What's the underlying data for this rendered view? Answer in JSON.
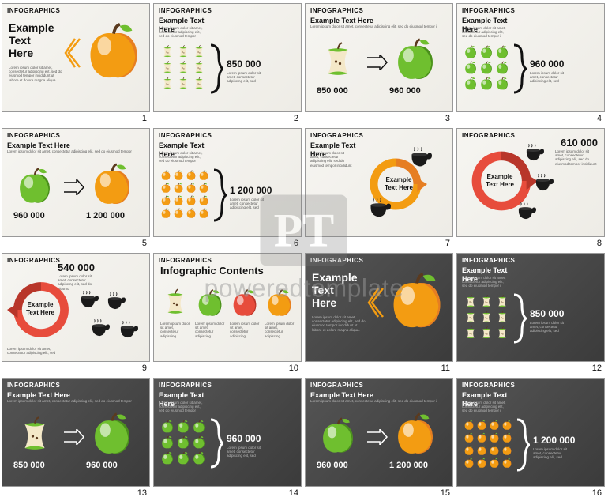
{
  "watermark": {
    "logo": "PT",
    "text": "poweredtemplate"
  },
  "common": {
    "tag": "INFOGRAPHICS",
    "title": "Example Text Here",
    "infographic_contents": "Infographic Contents",
    "lorem": "Lorem ipsum dolor sit amet, consectetur adipiscing elit, sed do eiusmod tempor incididunt ut labore et dolore magna aliqua."
  },
  "colors": {
    "orange": "#f39c12",
    "orange_dark": "#e67e22",
    "green": "#6fbf2f",
    "green_dark": "#4a8f1c",
    "red": "#e74c3c",
    "red_dark": "#b8362a",
    "black": "#1a1a1a",
    "core": "#f4e8c8",
    "core_seed": "#5b3a1e"
  },
  "slides": [
    {
      "n": 1,
      "bg": "light",
      "layout": "hero",
      "icon": "apple_orange"
    },
    {
      "n": 2,
      "bg": "light",
      "layout": "grid_brace",
      "icon": "core_green",
      "rows": 3,
      "cols": 3,
      "value": "850 000"
    },
    {
      "n": 3,
      "bg": "light",
      "layout": "compare",
      "left": "core_green",
      "right": "apple_green",
      "vals": [
        "850 000",
        "960 000"
      ]
    },
    {
      "n": 4,
      "bg": "light",
      "layout": "grid_brace",
      "icon": "apple_green",
      "rows": 3,
      "cols": 3,
      "value": "960 000"
    },
    {
      "n": 5,
      "bg": "light",
      "layout": "compare",
      "left": "apple_green",
      "right": "apple_orange",
      "vals": [
        "960 000",
        "1 200 000"
      ]
    },
    {
      "n": 6,
      "bg": "light",
      "layout": "grid_brace",
      "icon": "apple_orange",
      "rows": 4,
      "cols": 4,
      "value": "1 200 000"
    },
    {
      "n": 7,
      "bg": "light",
      "layout": "ring",
      "ring_color": "orange",
      "cups": 2
    },
    {
      "n": 8,
      "bg": "light",
      "layout": "ring_big",
      "ring_color": "red",
      "cups": 3,
      "value": "610 000"
    },
    {
      "n": 9,
      "bg": "light",
      "layout": "ring_left",
      "ring_color": "red",
      "cups": 4,
      "value": "540 000"
    },
    {
      "n": 10,
      "bg": "light",
      "layout": "contents",
      "icons": [
        "core_green",
        "apple_green",
        "apple_red",
        "apple_orange"
      ]
    },
    {
      "n": 11,
      "bg": "dark",
      "layout": "hero",
      "icon": "apple_orange"
    },
    {
      "n": 12,
      "bg": "dark",
      "layout": "grid_brace",
      "icon": "core_green",
      "rows": 3,
      "cols": 3,
      "value": "850 000"
    },
    {
      "n": 13,
      "bg": "dark",
      "layout": "compare",
      "left": "core_green",
      "right": "apple_green",
      "vals": [
        "850 000",
        "960 000"
      ]
    },
    {
      "n": 14,
      "bg": "dark",
      "layout": "grid_brace",
      "icon": "apple_green",
      "rows": 3,
      "cols": 3,
      "value": "960 000"
    },
    {
      "n": 15,
      "bg": "dark",
      "layout": "compare",
      "left": "apple_green",
      "right": "apple_orange",
      "vals": [
        "960 000",
        "1 200 000"
      ]
    },
    {
      "n": 16,
      "bg": "dark",
      "layout": "grid_brace",
      "icon": "apple_orange",
      "rows": 4,
      "cols": 4,
      "value": "1 200 000"
    }
  ]
}
